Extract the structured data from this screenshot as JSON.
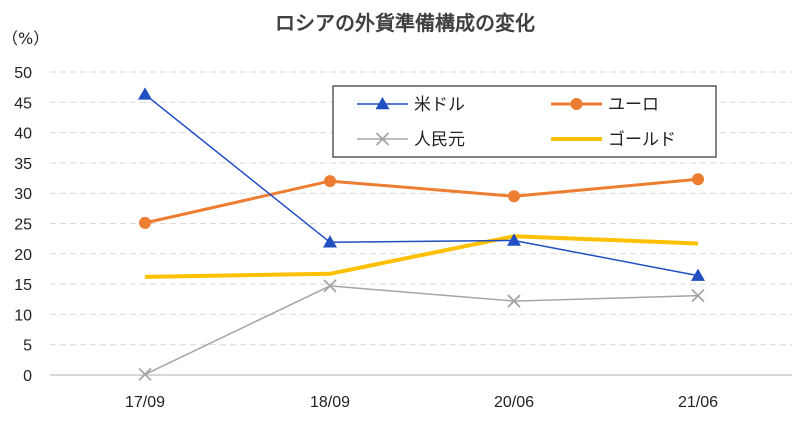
{
  "chart_data": {
    "type": "line",
    "title": "ロシアの外貨準備構成の変化",
    "y_unit_label": "（%）",
    "categories": [
      "17/09",
      "18/09",
      "20/06",
      "21/06"
    ],
    "ylim": [
      0,
      50
    ],
    "yticks": [
      0,
      5,
      10,
      15,
      20,
      25,
      30,
      35,
      40,
      45,
      50
    ],
    "grid": true,
    "legend_position": "top-right",
    "series": [
      {
        "name": "米ドル",
        "values": [
          46.3,
          21.9,
          22.2,
          16.4
        ],
        "color": "#1f4fc1",
        "marker": "triangle"
      },
      {
        "name": "ユーロ",
        "values": [
          25.1,
          32.0,
          29.5,
          32.3
        ],
        "color": "#ed7d31",
        "marker": "circle"
      },
      {
        "name": "人民元",
        "values": [
          0.1,
          14.7,
          12.2,
          13.1
        ],
        "color": "#a5a5a5",
        "marker": "x"
      },
      {
        "name": "ゴールド",
        "values": [
          16.2,
          16.7,
          22.9,
          21.7
        ],
        "color": "#ffc000",
        "marker": "none"
      }
    ]
  }
}
